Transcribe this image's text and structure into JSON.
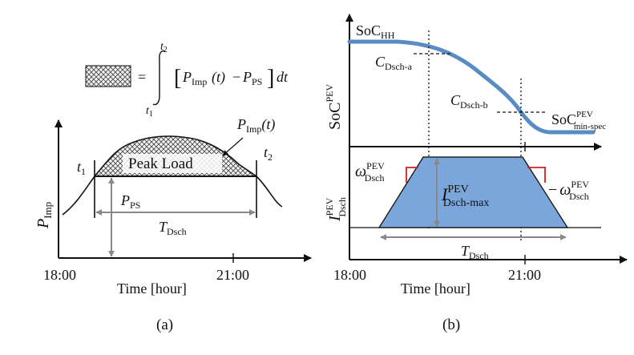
{
  "colors": {
    "accent_blue": "#5b8fc9",
    "curve_blue": "#5a8cc4",
    "fill_blue": "#7aa6dc",
    "dimension_gray": "#888888",
    "marker_red": "#d02020",
    "hatch": "#444444"
  },
  "panel_a": {
    "caption": "(a)",
    "formula": {
      "equals": "=",
      "upper_limit": "t",
      "upper_limit_sub": "2",
      "lower_limit": "t",
      "lower_limit_sub": "1",
      "bracket_open": "[",
      "p_imp": "P",
      "p_imp_sub": "Imp",
      "t_arg": "(t)",
      "minus": "−",
      "p_ps": "P",
      "p_ps_sub": "PS",
      "bracket_close": "]",
      "dt": "dt"
    },
    "y_axis_label": "P",
    "y_axis_label_sub": "Imp",
    "peak_load_label": "Peak Load",
    "curve_label": "P",
    "curve_label_sub": "Imp",
    "curve_label_arg": "(t)",
    "t1": "t",
    "t1_sub": "1",
    "t2": "t",
    "t2_sub": "2",
    "p_ps_label": "P",
    "p_ps_label_sub": "PS",
    "t_dsch_label": "T",
    "t_dsch_label_sub": "Dsch",
    "x_tick_start": "18:00",
    "x_tick_end": "21:00",
    "x_axis_label": "Time [hour]"
  },
  "panel_b": {
    "caption": "(b)",
    "soc_hh": "SoC",
    "soc_hh_sub": "HH",
    "soc_y_label": "SoC",
    "soc_y_label_sup": "PEV",
    "c_dsch_a": "C",
    "c_dsch_a_sub": "Dsch-a",
    "c_dsch_b": "C",
    "c_dsch_b_sub": "Dsch-b",
    "soc_min": "SoC",
    "soc_min_sup": "PEV",
    "soc_min_sub": "min-spec",
    "i_y_label": "I",
    "i_y_label_sup": "PEV",
    "i_y_label_sub": "Dsch",
    "omega_left": "ω",
    "omega_left_sup": "PEV",
    "omega_left_sub": "Dsch",
    "i_max": "I",
    "i_max_sup": "PEV",
    "i_max_sub": "Dsch-max",
    "omega_right_prefix": "−",
    "omega_right": "ω",
    "omega_right_sup": "PEV",
    "omega_right_sub": "Dsch",
    "t_dsch_label": "T",
    "t_dsch_label_sub": "Dsch",
    "x_tick_start": "18:00",
    "x_tick_end": "21:00",
    "x_axis_label": "Time [hour]"
  }
}
